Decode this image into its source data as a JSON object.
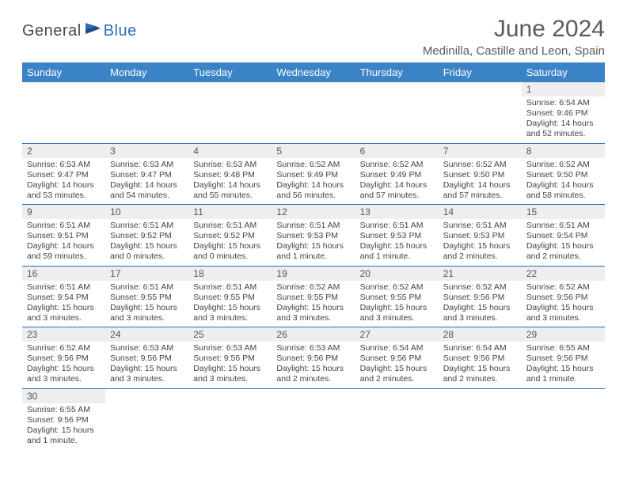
{
  "logo": {
    "text1": "General",
    "text2": "Blue"
  },
  "title": "June 2024",
  "location": "Medinilla, Castille and Leon, Spain",
  "headers": [
    "Sunday",
    "Monday",
    "Tuesday",
    "Wednesday",
    "Thursday",
    "Friday",
    "Saturday"
  ],
  "colors": {
    "header_bg": "#3b83c7",
    "header_text": "#ffffff",
    "daynum_bg": "#eeeeee",
    "border": "#2b6fb5",
    "text": "#444444"
  },
  "weeks": [
    [
      null,
      null,
      null,
      null,
      null,
      null,
      {
        "n": "1",
        "sunrise": "Sunrise: 6:54 AM",
        "sunset": "Sunset: 9:46 PM",
        "daylight": "Daylight: 14 hours and 52 minutes."
      }
    ],
    [
      {
        "n": "2",
        "sunrise": "Sunrise: 6:53 AM",
        "sunset": "Sunset: 9:47 PM",
        "daylight": "Daylight: 14 hours and 53 minutes."
      },
      {
        "n": "3",
        "sunrise": "Sunrise: 6:53 AM",
        "sunset": "Sunset: 9:47 PM",
        "daylight": "Daylight: 14 hours and 54 minutes."
      },
      {
        "n": "4",
        "sunrise": "Sunrise: 6:53 AM",
        "sunset": "Sunset: 9:48 PM",
        "daylight": "Daylight: 14 hours and 55 minutes."
      },
      {
        "n": "5",
        "sunrise": "Sunrise: 6:52 AM",
        "sunset": "Sunset: 9:49 PM",
        "daylight": "Daylight: 14 hours and 56 minutes."
      },
      {
        "n": "6",
        "sunrise": "Sunrise: 6:52 AM",
        "sunset": "Sunset: 9:49 PM",
        "daylight": "Daylight: 14 hours and 57 minutes."
      },
      {
        "n": "7",
        "sunrise": "Sunrise: 6:52 AM",
        "sunset": "Sunset: 9:50 PM",
        "daylight": "Daylight: 14 hours and 57 minutes."
      },
      {
        "n": "8",
        "sunrise": "Sunrise: 6:52 AM",
        "sunset": "Sunset: 9:50 PM",
        "daylight": "Daylight: 14 hours and 58 minutes."
      }
    ],
    [
      {
        "n": "9",
        "sunrise": "Sunrise: 6:51 AM",
        "sunset": "Sunset: 9:51 PM",
        "daylight": "Daylight: 14 hours and 59 minutes."
      },
      {
        "n": "10",
        "sunrise": "Sunrise: 6:51 AM",
        "sunset": "Sunset: 9:52 PM",
        "daylight": "Daylight: 15 hours and 0 minutes."
      },
      {
        "n": "11",
        "sunrise": "Sunrise: 6:51 AM",
        "sunset": "Sunset: 9:52 PM",
        "daylight": "Daylight: 15 hours and 0 minutes."
      },
      {
        "n": "12",
        "sunrise": "Sunrise: 6:51 AM",
        "sunset": "Sunset: 9:53 PM",
        "daylight": "Daylight: 15 hours and 1 minute."
      },
      {
        "n": "13",
        "sunrise": "Sunrise: 6:51 AM",
        "sunset": "Sunset: 9:53 PM",
        "daylight": "Daylight: 15 hours and 1 minute."
      },
      {
        "n": "14",
        "sunrise": "Sunrise: 6:51 AM",
        "sunset": "Sunset: 9:53 PM",
        "daylight": "Daylight: 15 hours and 2 minutes."
      },
      {
        "n": "15",
        "sunrise": "Sunrise: 6:51 AM",
        "sunset": "Sunset: 9:54 PM",
        "daylight": "Daylight: 15 hours and 2 minutes."
      }
    ],
    [
      {
        "n": "16",
        "sunrise": "Sunrise: 6:51 AM",
        "sunset": "Sunset: 9:54 PM",
        "daylight": "Daylight: 15 hours and 3 minutes."
      },
      {
        "n": "17",
        "sunrise": "Sunrise: 6:51 AM",
        "sunset": "Sunset: 9:55 PM",
        "daylight": "Daylight: 15 hours and 3 minutes."
      },
      {
        "n": "18",
        "sunrise": "Sunrise: 6:51 AM",
        "sunset": "Sunset: 9:55 PM",
        "daylight": "Daylight: 15 hours and 3 minutes."
      },
      {
        "n": "19",
        "sunrise": "Sunrise: 6:52 AM",
        "sunset": "Sunset: 9:55 PM",
        "daylight": "Daylight: 15 hours and 3 minutes."
      },
      {
        "n": "20",
        "sunrise": "Sunrise: 6:52 AM",
        "sunset": "Sunset: 9:55 PM",
        "daylight": "Daylight: 15 hours and 3 minutes."
      },
      {
        "n": "21",
        "sunrise": "Sunrise: 6:52 AM",
        "sunset": "Sunset: 9:56 PM",
        "daylight": "Daylight: 15 hours and 3 minutes."
      },
      {
        "n": "22",
        "sunrise": "Sunrise: 6:52 AM",
        "sunset": "Sunset: 9:56 PM",
        "daylight": "Daylight: 15 hours and 3 minutes."
      }
    ],
    [
      {
        "n": "23",
        "sunrise": "Sunrise: 6:52 AM",
        "sunset": "Sunset: 9:56 PM",
        "daylight": "Daylight: 15 hours and 3 minutes."
      },
      {
        "n": "24",
        "sunrise": "Sunrise: 6:53 AM",
        "sunset": "Sunset: 9:56 PM",
        "daylight": "Daylight: 15 hours and 3 minutes."
      },
      {
        "n": "25",
        "sunrise": "Sunrise: 6:53 AM",
        "sunset": "Sunset: 9:56 PM",
        "daylight": "Daylight: 15 hours and 3 minutes."
      },
      {
        "n": "26",
        "sunrise": "Sunrise: 6:53 AM",
        "sunset": "Sunset: 9:56 PM",
        "daylight": "Daylight: 15 hours and 2 minutes."
      },
      {
        "n": "27",
        "sunrise": "Sunrise: 6:54 AM",
        "sunset": "Sunset: 9:56 PM",
        "daylight": "Daylight: 15 hours and 2 minutes."
      },
      {
        "n": "28",
        "sunrise": "Sunrise: 6:54 AM",
        "sunset": "Sunset: 9:56 PM",
        "daylight": "Daylight: 15 hours and 2 minutes."
      },
      {
        "n": "29",
        "sunrise": "Sunrise: 6:55 AM",
        "sunset": "Sunset: 9:56 PM",
        "daylight": "Daylight: 15 hours and 1 minute."
      }
    ],
    [
      {
        "n": "30",
        "sunrise": "Sunrise: 6:55 AM",
        "sunset": "Sunset: 9:56 PM",
        "daylight": "Daylight: 15 hours and 1 minute."
      },
      null,
      null,
      null,
      null,
      null,
      null
    ]
  ]
}
